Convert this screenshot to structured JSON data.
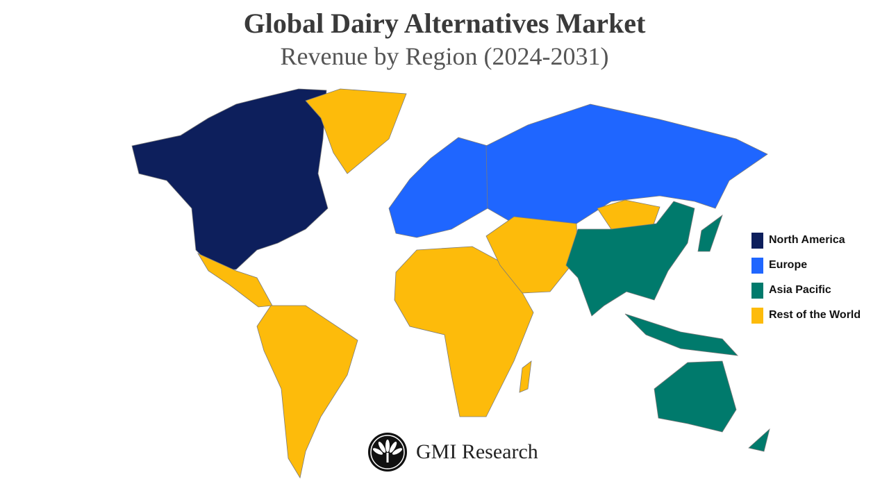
{
  "header": {
    "title": "Global Dairy Alternatives Market",
    "subtitle": "Revenue by Region (2024-2031)"
  },
  "colors": {
    "north_america": "#0d1f5c",
    "europe": "#1f66ff",
    "asia_pacific": "#007a6c",
    "rest_of_world": "#fdbb0b"
  },
  "legend": [
    {
      "label": "North America",
      "color": "#0d1f5c"
    },
    {
      "label": "Europe",
      "color": "#1f66ff"
    },
    {
      "label": "Asia Pacific",
      "color": "#007a6c"
    },
    {
      "label": "Rest of the World",
      "color": "#fdbb0b"
    }
  ],
  "logo": {
    "text": "GMI Research",
    "icon": "palm-leaf-circle-icon"
  }
}
